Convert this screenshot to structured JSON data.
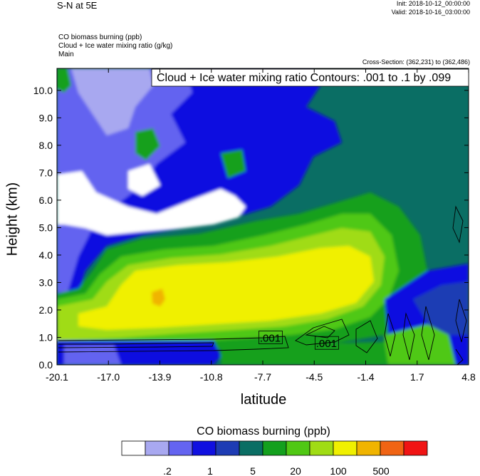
{
  "header": {
    "title": "S-N at 5E",
    "init": "Init: 2018-10-12_00:00:00",
    "valid": "Valid: 2018-10-16_03:00:00",
    "field1": "CO biomass burning   (ppb)",
    "field2": "Cloud + Ice water mixing ratio   (g/kg)",
    "field3": "Main",
    "cross_section": "Cross-Section: (362,231) to (362,486)"
  },
  "chart_data": {
    "type": "heatmap",
    "title": "S-N at 5E",
    "xlabel": "latitude",
    "ylabel": "Height (km)",
    "x_ticks": [
      "-20.1",
      "-17.0",
      "-13.9",
      "-10.8",
      "-7.7",
      "-4.5",
      "-1.4",
      "1.7",
      "4.8"
    ],
    "y_ticks": [
      "0.0",
      "1.0",
      "2.0",
      "3.0",
      "4.0",
      "5.0",
      "6.0",
      "7.0",
      "8.0",
      "9.0",
      "10.0"
    ],
    "xlim": [
      -20.1,
      4.8
    ],
    "ylim": [
      0,
      10.8
    ],
    "contour_info": "Cloud + Ice water mixing ratio Contours: .001 to .1 by .099",
    "contour_labels": [
      {
        "text": ".001",
        "lat": -7.2,
        "height": 1.0
      },
      {
        "text": ".001",
        "lat": -3.8,
        "height": 0.8
      }
    ],
    "colorbar": {
      "title": "CO biomass burning  (ppb)",
      "colors": [
        "#ffffff",
        "#a8a8f0",
        "#6464f0",
        "#1010e0",
        "#1e3cb4",
        "#0a6e64",
        "#14a01e",
        "#50c814",
        "#a0dc14",
        "#f0f000",
        "#f0b400",
        "#f06414",
        "#f01414"
      ],
      "tick_labels": [
        ".2",
        "1",
        "5",
        "20",
        "100",
        "500"
      ]
    }
  }
}
